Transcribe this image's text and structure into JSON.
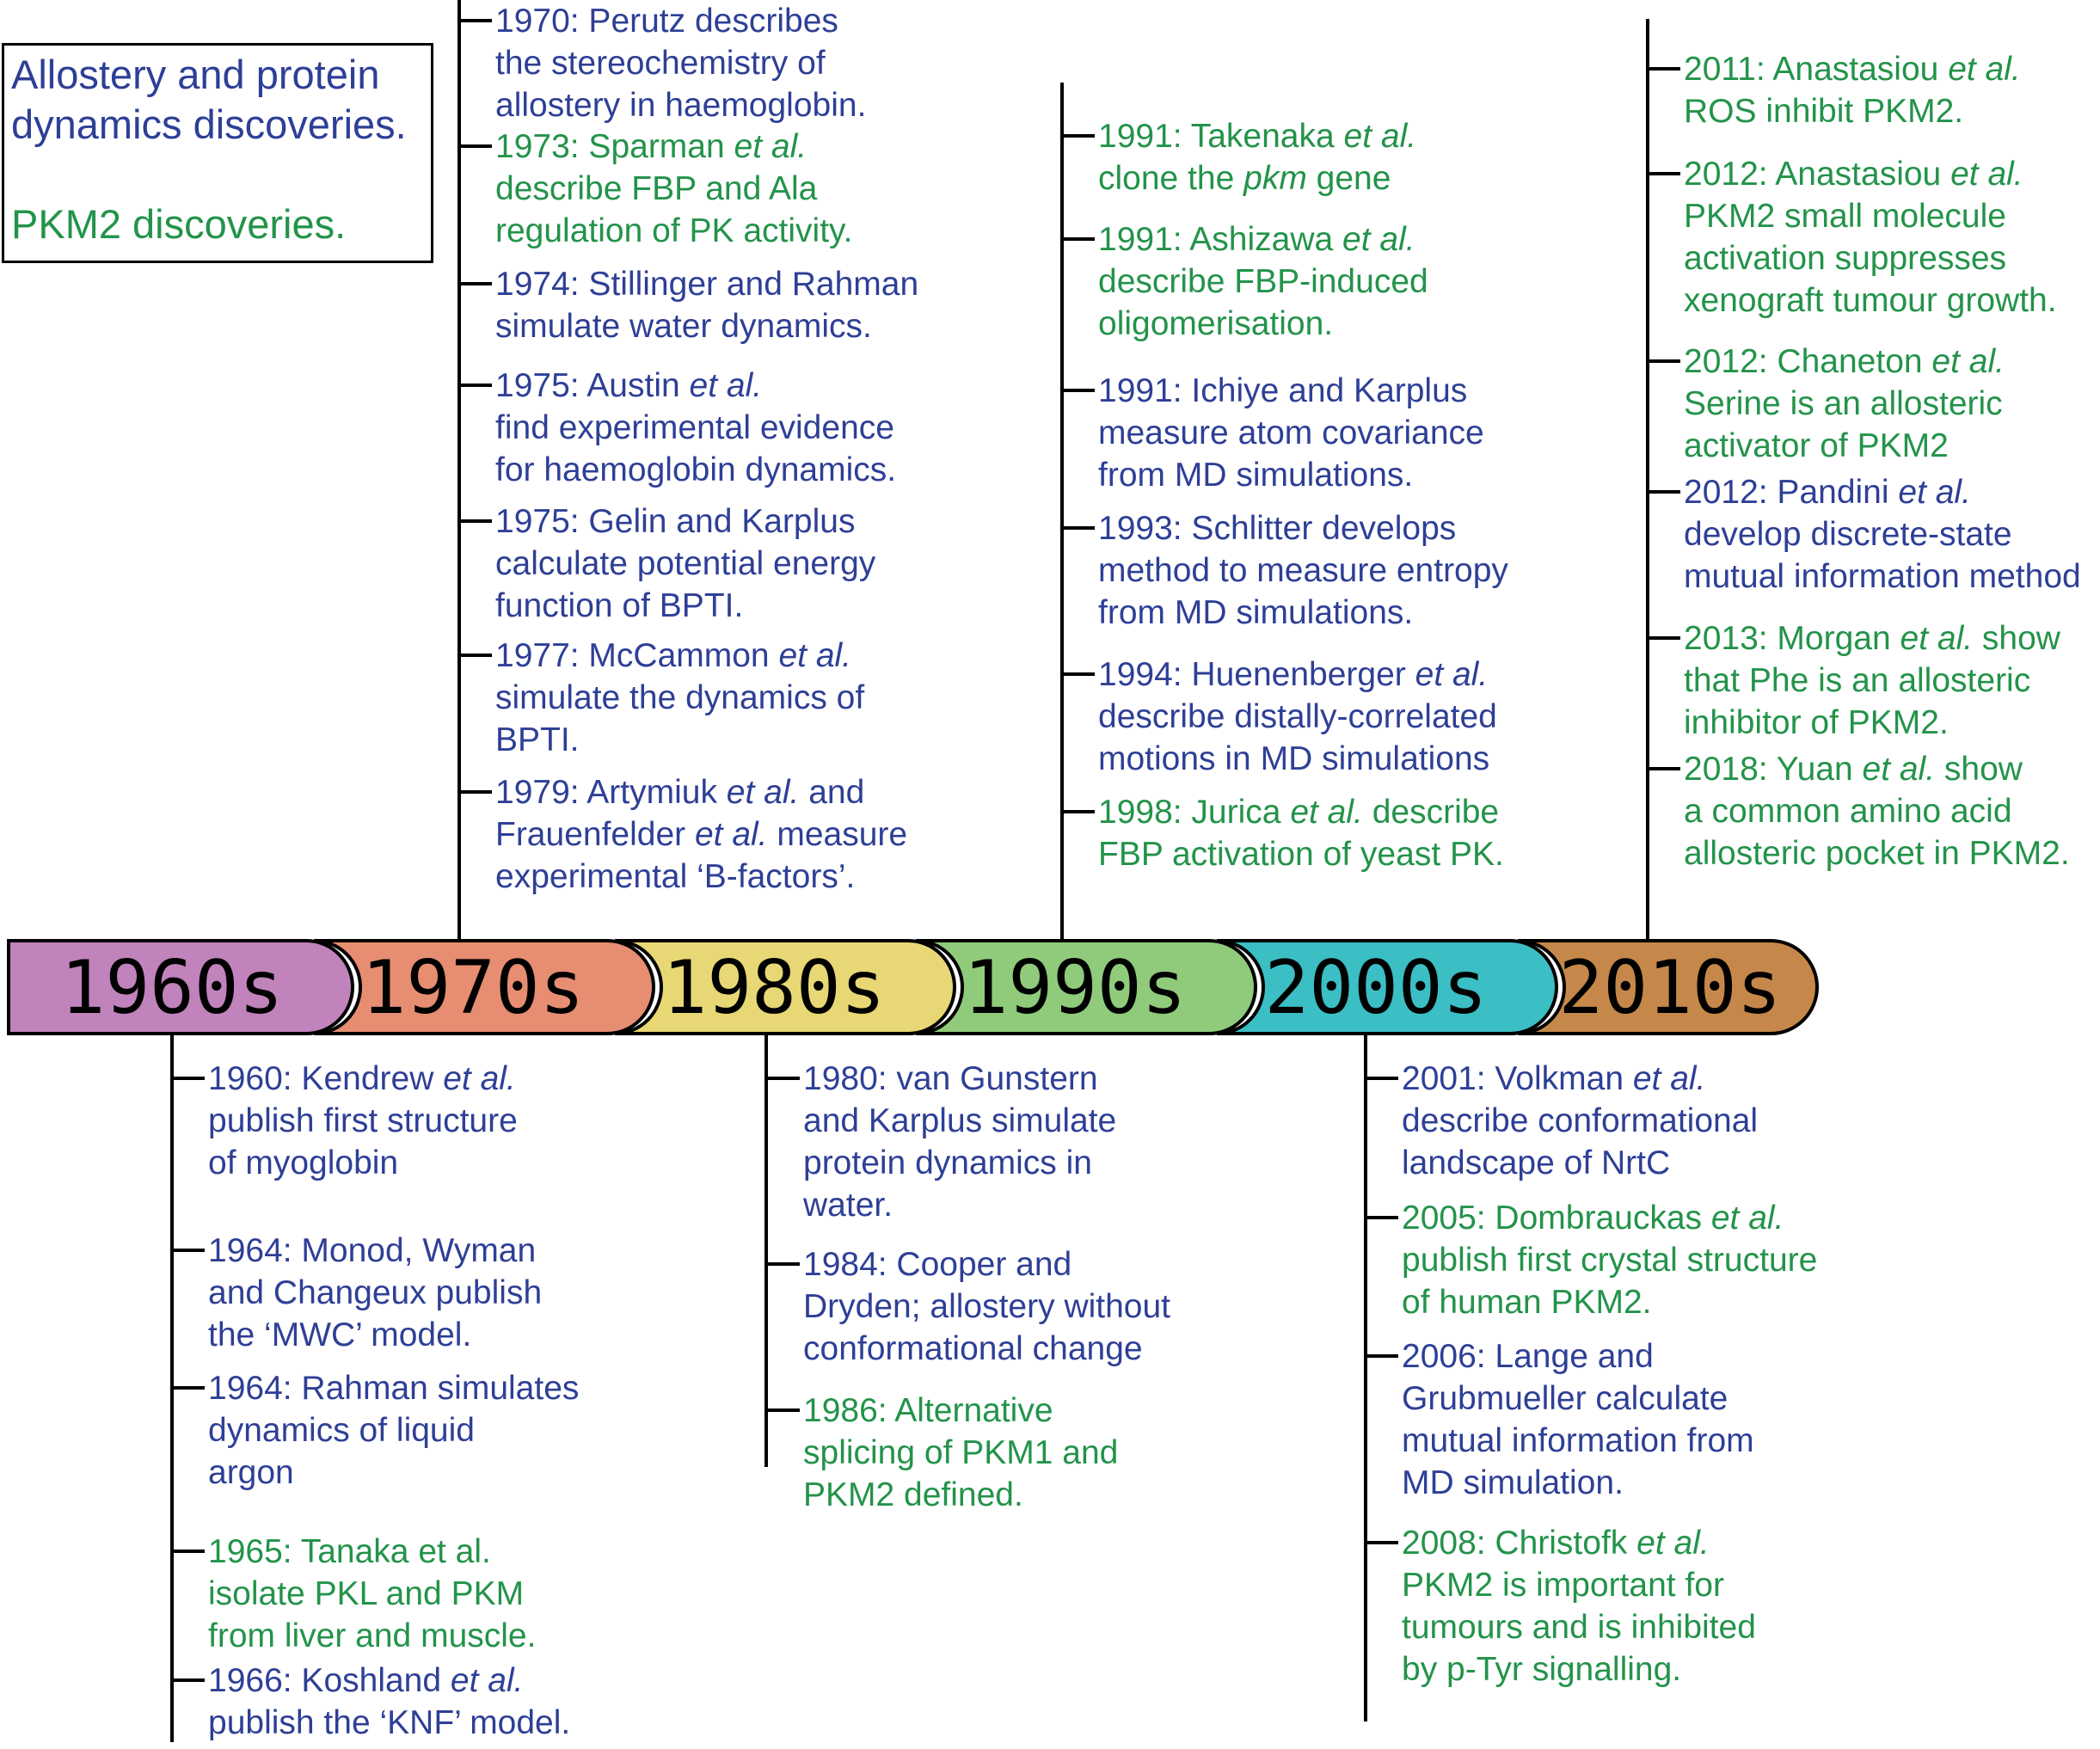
{
  "legend": {
    "blue_text": [
      "Allostery and protein",
      "dynamics discoveries."
    ],
    "green_text": "PKM2 discoveries."
  },
  "colors": {
    "blue": "#2e3f96",
    "green": "#23934a",
    "decades": [
      "#c183bb",
      "#e78e72",
      "#e8d875",
      "#8fcb7b",
      "#3bbec4",
      "#c5884a"
    ]
  },
  "decades": [
    "1960s",
    "1970s",
    "1980s",
    "1990s",
    "2000s",
    "2010s"
  ],
  "events_1960s": [
    {
      "kind": "blue",
      "lines": [
        [
          "1960: Kendrew ",
          "et al."
        ],
        [
          "publish first structure"
        ],
        [
          "of myoglobin"
        ]
      ]
    },
    {
      "kind": "blue",
      "lines": [
        [
          "1964: Monod, Wyman"
        ],
        [
          "and Changeux publish"
        ],
        [
          "the ‘MWC’ model."
        ]
      ]
    },
    {
      "kind": "blue",
      "lines": [
        [
          "1964: Rahman simulates"
        ],
        [
          "dynamics of liquid"
        ],
        [
          "argon"
        ]
      ]
    },
    {
      "kind": "green",
      "lines": [
        [
          "1965: Tanaka et al."
        ],
        [
          "isolate PKL and PKM"
        ],
        [
          "from liver and muscle."
        ]
      ]
    },
    {
      "kind": "blue",
      "lines": [
        [
          "1966: Koshland ",
          "et al."
        ],
        [
          "publish the ‘KNF’ model."
        ]
      ]
    }
  ],
  "events_1970s": [
    {
      "kind": "blue",
      "lines": [
        [
          "1970: Perutz describes"
        ],
        [
          "the stereochemistry of"
        ],
        [
          "allostery in haemoglobin."
        ]
      ]
    },
    {
      "kind": "green",
      "lines": [
        [
          "1973: Sparman ",
          "et al."
        ],
        [
          "describe FBP and Ala"
        ],
        [
          "regulation of PK activity."
        ]
      ]
    },
    {
      "kind": "blue",
      "lines": [
        [
          "1974: Stillinger and Rahman"
        ],
        [
          "simulate water dynamics."
        ]
      ]
    },
    {
      "kind": "blue",
      "lines": [
        [
          "1975: Austin ",
          "et al."
        ],
        [
          "find experimental evidence"
        ],
        [
          "for haemoglobin dynamics."
        ]
      ]
    },
    {
      "kind": "blue",
      "lines": [
        [
          "1975: Gelin and Karplus"
        ],
        [
          "calculate potential energy"
        ],
        [
          "function of BPTI."
        ]
      ]
    },
    {
      "kind": "blue",
      "lines": [
        [
          "1977: McCammon ",
          "et al."
        ],
        [
          "simulate the dynamics of"
        ],
        [
          "BPTI."
        ]
      ]
    },
    {
      "kind": "blue",
      "lines": [
        [
          "1979: Artymiuk ",
          "et al.",
          " and"
        ],
        [
          "Frauenfelder ",
          "et al.",
          " measure"
        ],
        [
          "experimental ‘B-factors’."
        ]
      ]
    }
  ],
  "events_1980s": [
    {
      "kind": "blue",
      "lines": [
        [
          "1980: van Gunstern"
        ],
        [
          "and Karplus simulate"
        ],
        [
          "protein dynamics in"
        ],
        [
          "water."
        ]
      ]
    },
    {
      "kind": "blue",
      "lines": [
        [
          "1984: Cooper and"
        ],
        [
          "Dryden; allostery without"
        ],
        [
          "conformational change"
        ]
      ]
    },
    {
      "kind": "green",
      "lines": [
        [
          "1986: Alternative"
        ],
        [
          "splicing of PKM1 and"
        ],
        [
          "PKM2 defined."
        ]
      ]
    }
  ],
  "events_1990s": [
    {
      "kind": "green",
      "lines": [
        [
          "1991: Takenaka ",
          "et al."
        ],
        [
          "clone the ",
          "pkm",
          " gene"
        ]
      ]
    },
    {
      "kind": "green",
      "lines": [
        [
          "1991: Ashizawa ",
          "et al."
        ],
        [
          "describe FBP-induced"
        ],
        [
          "oligomerisation."
        ]
      ]
    },
    {
      "kind": "blue",
      "lines": [
        [
          "1991: Ichiye and Karplus"
        ],
        [
          "measure atom covariance"
        ],
        [
          "from MD simulations."
        ]
      ]
    },
    {
      "kind": "blue",
      "lines": [
        [
          "1993: Schlitter develops"
        ],
        [
          "method to measure entropy"
        ],
        [
          "from MD simulations."
        ]
      ]
    },
    {
      "kind": "blue",
      "lines": [
        [
          "1994: Huenenberger ",
          "et al."
        ],
        [
          "describe distally-correlated"
        ],
        [
          "motions in MD simulations"
        ]
      ]
    },
    {
      "kind": "green",
      "lines": [
        [
          "1998: Jurica ",
          "et al.",
          " describe"
        ],
        [
          "FBP activation of yeast PK."
        ]
      ]
    }
  ],
  "events_2000s": [
    {
      "kind": "blue",
      "lines": [
        [
          "2001: Volkman ",
          "et al."
        ],
        [
          "describe conformational"
        ],
        [
          "landscape of NrtC"
        ]
      ]
    },
    {
      "kind": "green",
      "lines": [
        [
          "2005: Dombrauckas ",
          "et al."
        ],
        [
          "publish first crystal structure"
        ],
        [
          "of human PKM2."
        ]
      ]
    },
    {
      "kind": "blue",
      "lines": [
        [
          "2006: Lange and"
        ],
        [
          "Grubmueller calculate"
        ],
        [
          "mutual information from"
        ],
        [
          "MD simulation."
        ]
      ]
    },
    {
      "kind": "green",
      "lines": [
        [
          "2008: Christofk ",
          "et al."
        ],
        [
          "PKM2 is important for"
        ],
        [
          "tumours and is inhibited"
        ],
        [
          "by p-Tyr signalling."
        ]
      ]
    }
  ],
  "events_2010s": [
    {
      "kind": "green",
      "lines": [
        [
          "2011: Anastasiou ",
          "et al."
        ],
        [
          "ROS inhibit PKM2."
        ]
      ]
    },
    {
      "kind": "green",
      "lines": [
        [
          "2012: Anastasiou ",
          "et al."
        ],
        [
          "PKM2 small molecule"
        ],
        [
          "activation suppresses"
        ],
        [
          "xenograft tumour growth."
        ]
      ]
    },
    {
      "kind": "green",
      "lines": [
        [
          "2012: Chaneton ",
          "et al."
        ],
        [
          "Serine is an allosteric"
        ],
        [
          "activator of PKM2"
        ]
      ]
    },
    {
      "kind": "blue",
      "lines": [
        [
          "2012: Pandini ",
          "et al."
        ],
        [
          "develop discrete-state"
        ],
        [
          "mutual information method"
        ]
      ]
    },
    {
      "kind": "green",
      "lines": [
        [
          "2013: Morgan ",
          "et al.",
          " show"
        ],
        [
          "that Phe is an allosteric"
        ],
        [
          "inhibitor of PKM2."
        ]
      ]
    },
    {
      "kind": "green",
      "lines": [
        [
          "2018: Yuan ",
          "et al.",
          " show"
        ],
        [
          "a common amino acid"
        ],
        [
          "allosteric pocket in PKM2."
        ]
      ]
    }
  ]
}
